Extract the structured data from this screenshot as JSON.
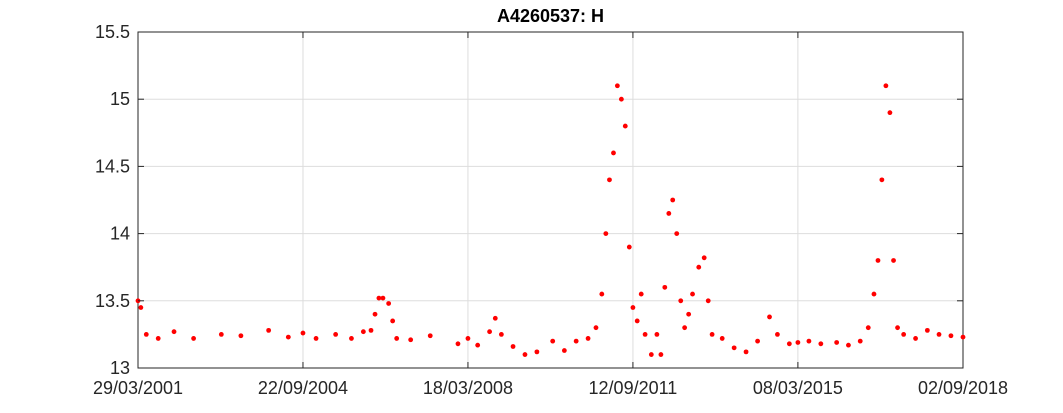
{
  "chart_data": {
    "type": "scatter",
    "title": "A4260537: H",
    "xlabel": "",
    "ylabel": "",
    "x_axis": {
      "kind": "date",
      "range": [
        "2001-03-29",
        "2018-09-02"
      ],
      "tick_labels": [
        "29/03/2001",
        "22/09/2004",
        "18/03/2008",
        "12/09/2011",
        "08/03/2015",
        "02/09/2018"
      ],
      "tick_dates": [
        "2001-03-29",
        "2004-09-22",
        "2008-03-18",
        "2011-09-12",
        "2015-03-08",
        "2018-09-02"
      ]
    },
    "y_axis": {
      "range": [
        13,
        15.5
      ],
      "tick_labels": [
        "13",
        "13.5",
        "14",
        "14.5",
        "15",
        "15.5"
      ],
      "tick_values": [
        13,
        13.5,
        14,
        14.5,
        15,
        15.5
      ]
    },
    "grid": true,
    "series": [
      {
        "color": "#ff0000",
        "marker": "dot",
        "points": [
          [
            "2001-03-29",
            13.5
          ],
          [
            "2001-04-20",
            13.45
          ],
          [
            "2001-06-01",
            13.25
          ],
          [
            "2001-09-01",
            13.22
          ],
          [
            "2002-01-01",
            13.27
          ],
          [
            "2002-06-01",
            13.22
          ],
          [
            "2003-01-01",
            13.25
          ],
          [
            "2003-06-01",
            13.24
          ],
          [
            "2004-01-01",
            13.28
          ],
          [
            "2004-06-01",
            13.23
          ],
          [
            "2004-09-22",
            13.26
          ],
          [
            "2005-01-01",
            13.22
          ],
          [
            "2005-06-01",
            13.25
          ],
          [
            "2005-10-01",
            13.22
          ],
          [
            "2006-01-01",
            13.27
          ],
          [
            "2006-03-01",
            13.28
          ],
          [
            "2006-04-01",
            13.4
          ],
          [
            "2006-05-01",
            13.52
          ],
          [
            "2006-06-01",
            13.52
          ],
          [
            "2006-07-15",
            13.48
          ],
          [
            "2006-08-15",
            13.35
          ],
          [
            "2006-09-15",
            13.22
          ],
          [
            "2007-01-01",
            13.21
          ],
          [
            "2007-06-01",
            13.24
          ],
          [
            "2008-01-01",
            13.18
          ],
          [
            "2008-03-18",
            13.22
          ],
          [
            "2008-06-01",
            13.17
          ],
          [
            "2008-09-01",
            13.27
          ],
          [
            "2008-10-15",
            13.37
          ],
          [
            "2008-12-01",
            13.25
          ],
          [
            "2009-03-01",
            13.16
          ],
          [
            "2009-06-01",
            13.1
          ],
          [
            "2009-09-01",
            13.12
          ],
          [
            "2010-01-01",
            13.2
          ],
          [
            "2010-04-01",
            13.13
          ],
          [
            "2010-07-01",
            13.2
          ],
          [
            "2010-10-01",
            13.22
          ],
          [
            "2010-12-01",
            13.3
          ],
          [
            "2011-01-15",
            13.55
          ],
          [
            "2011-02-15",
            14.0
          ],
          [
            "2011-03-15",
            14.4
          ],
          [
            "2011-04-15",
            14.6
          ],
          [
            "2011-05-15",
            15.1
          ],
          [
            "2011-06-15",
            15.0
          ],
          [
            "2011-07-15",
            14.8
          ],
          [
            "2011-08-15",
            13.9
          ],
          [
            "2011-09-12",
            13.45
          ],
          [
            "2011-10-15",
            13.35
          ],
          [
            "2011-11-15",
            13.55
          ],
          [
            "2011-12-15",
            13.25
          ],
          [
            "2012-02-01",
            13.1
          ],
          [
            "2012-03-15",
            13.25
          ],
          [
            "2012-04-15",
            13.1
          ],
          [
            "2012-05-15",
            13.6
          ],
          [
            "2012-06-15",
            14.15
          ],
          [
            "2012-07-15",
            14.25
          ],
          [
            "2012-08-15",
            14.0
          ],
          [
            "2012-09-15",
            13.5
          ],
          [
            "2012-10-15",
            13.3
          ],
          [
            "2012-11-15",
            13.4
          ],
          [
            "2012-12-15",
            13.55
          ],
          [
            "2013-02-01",
            13.75
          ],
          [
            "2013-03-15",
            13.82
          ],
          [
            "2013-04-15",
            13.5
          ],
          [
            "2013-05-15",
            13.25
          ],
          [
            "2013-08-01",
            13.22
          ],
          [
            "2013-11-01",
            13.15
          ],
          [
            "2014-02-01",
            13.12
          ],
          [
            "2014-05-01",
            13.2
          ],
          [
            "2014-08-01",
            13.38
          ],
          [
            "2014-10-01",
            13.25
          ],
          [
            "2015-01-01",
            13.18
          ],
          [
            "2015-03-08",
            13.19
          ],
          [
            "2015-06-01",
            13.2
          ],
          [
            "2015-09-01",
            13.18
          ],
          [
            "2016-01-01",
            13.19
          ],
          [
            "2016-04-01",
            13.17
          ],
          [
            "2016-07-01",
            13.2
          ],
          [
            "2016-09-01",
            13.3
          ],
          [
            "2016-10-15",
            13.55
          ],
          [
            "2016-11-15",
            13.8
          ],
          [
            "2016-12-15",
            14.4
          ],
          [
            "2017-01-15",
            15.1
          ],
          [
            "2017-02-15",
            14.9
          ],
          [
            "2017-03-15",
            13.8
          ],
          [
            "2017-04-15",
            13.3
          ],
          [
            "2017-06-01",
            13.25
          ],
          [
            "2017-09-01",
            13.22
          ],
          [
            "2017-12-01",
            13.28
          ],
          [
            "2018-03-01",
            13.25
          ],
          [
            "2018-06-01",
            13.24
          ],
          [
            "2018-09-02",
            13.23
          ]
        ]
      }
    ]
  }
}
